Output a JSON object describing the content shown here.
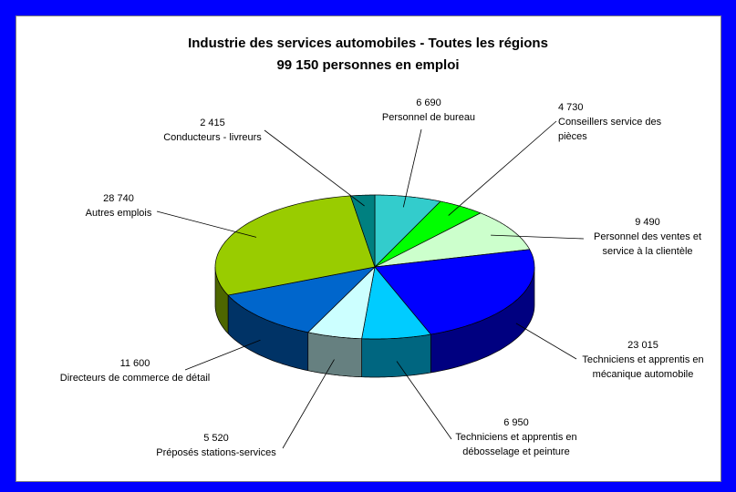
{
  "chart_data": {
    "type": "pie",
    "title": "Industrie des services automobiles - Toutes les régions",
    "subtitle": "99 150 personnes en emploi",
    "categories": [
      "Personnel de bureau",
      "Conseillers service des pièces",
      "Personnel des ventes et service à la clientèle",
      "Techniciens et apprentis en mécanique automobile",
      "Techniciens et apprentis en débosselage et peinture",
      "Préposés stations-services",
      "Directeurs de commerce de détail",
      "Autres emplois",
      "Conducteurs - livreurs"
    ],
    "values": [
      6690,
      4730,
      9490,
      23015,
      6950,
      5520,
      11600,
      28740,
      2415
    ],
    "value_labels": [
      "6 690",
      "4 730",
      "9 490",
      "23 015",
      "6 950",
      "5 520",
      "11 600",
      "28 740",
      "2 415"
    ],
    "colors": [
      "#33cccc",
      "#00ff00",
      "#ccffcc",
      "#0000ff",
      "#00ccff",
      "#ccffff",
      "#0066cc",
      "#99cc00",
      "#008080"
    ]
  }
}
